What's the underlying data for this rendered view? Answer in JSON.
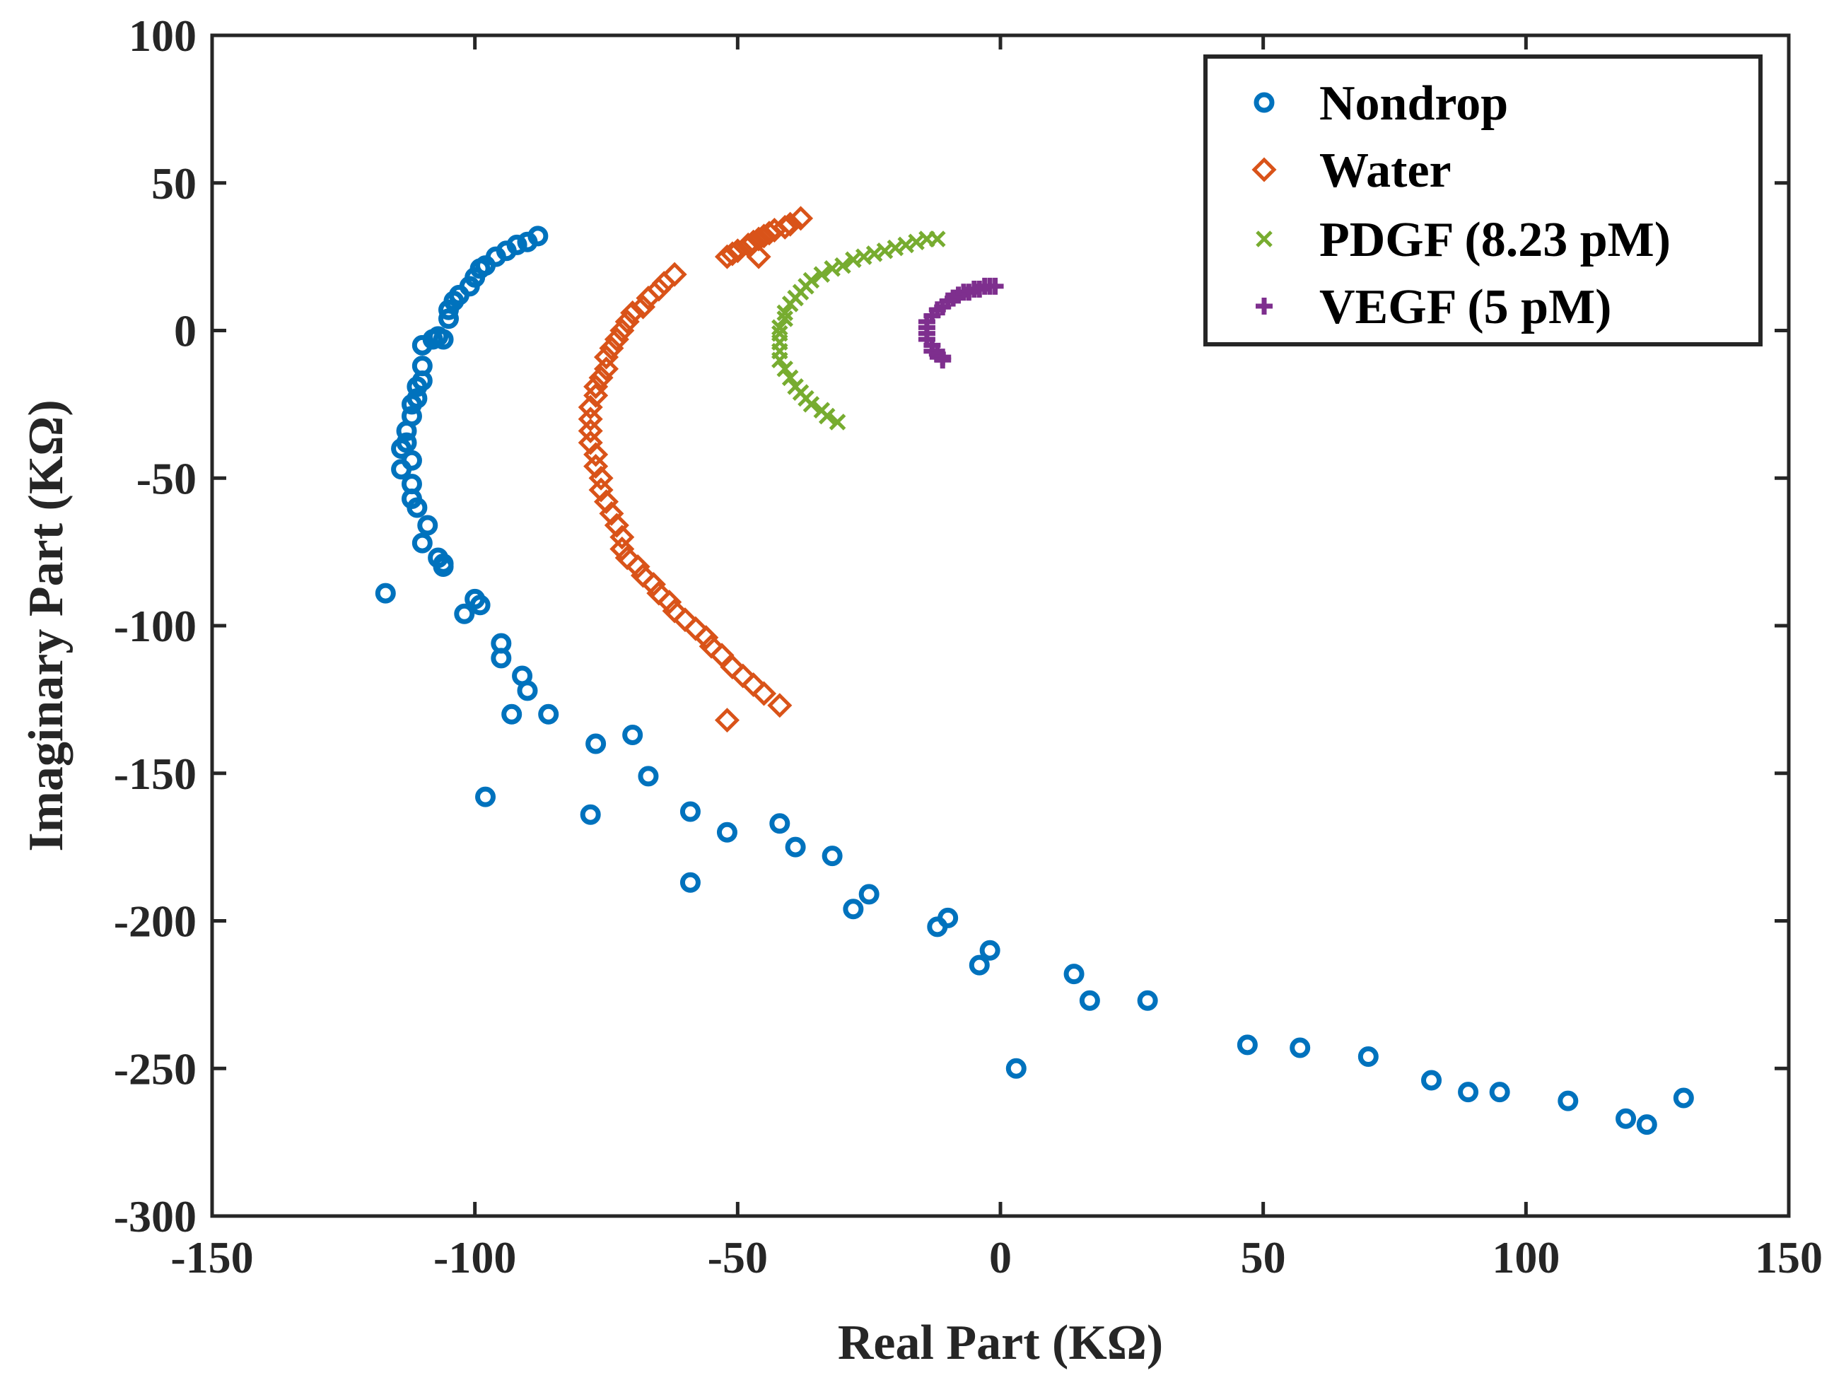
{
  "chart_data": {
    "type": "scatter",
    "title": "",
    "xlabel": "Real Part (KΩ)",
    "ylabel": "Imaginary Part (KΩ)",
    "xlim": [
      -150,
      150
    ],
    "ylim": [
      -300,
      100
    ],
    "xticks": [
      -150,
      -100,
      -50,
      0,
      50,
      100,
      150
    ],
    "yticks": [
      -300,
      -250,
      -200,
      -150,
      -100,
      -50,
      0,
      50,
      100
    ],
    "xtick_labels": [
      "-150",
      "-100",
      "-50",
      "0",
      "50",
      "100",
      "150"
    ],
    "ytick_labels": [
      "-300",
      "-250",
      "-200",
      "-150",
      "-100",
      "-50",
      "0",
      "50",
      "100"
    ],
    "grid": false,
    "legend_position": "top-right",
    "series": [
      {
        "name": "Nondrop",
        "marker": "circle",
        "color": "#0072BD",
        "points": [
          [
            -88,
            32
          ],
          [
            -90,
            30
          ],
          [
            -92,
            29
          ],
          [
            -94,
            27
          ],
          [
            -96,
            25
          ],
          [
            -98,
            22
          ],
          [
            -99,
            21
          ],
          [
            -100,
            18
          ],
          [
            -101,
            15
          ],
          [
            -103,
            12
          ],
          [
            -104,
            10
          ],
          [
            -105,
            7
          ],
          [
            -105,
            4
          ],
          [
            -106,
            -3
          ],
          [
            -107,
            -2
          ],
          [
            -108,
            -3
          ],
          [
            -110,
            -5
          ],
          [
            -110,
            -12
          ],
          [
            -110,
            -17
          ],
          [
            -111,
            -19
          ],
          [
            -111,
            -23
          ],
          [
            -112,
            -25
          ],
          [
            -112,
            -29
          ],
          [
            -113,
            -34
          ],
          [
            -113,
            -38
          ],
          [
            -114,
            -40
          ],
          [
            -112,
            -44
          ],
          [
            -114,
            -47
          ],
          [
            -112,
            -52
          ],
          [
            -112,
            -57
          ],
          [
            -111,
            -60
          ],
          [
            -109,
            -66
          ],
          [
            -110,
            -72
          ],
          [
            -107,
            -77
          ],
          [
            -106,
            -79
          ],
          [
            -106,
            -80
          ],
          [
            -117,
            -89
          ],
          [
            -100,
            -91
          ],
          [
            -102,
            -96
          ],
          [
            -99,
            -93
          ],
          [
            -95,
            -106
          ],
          [
            -95,
            -111
          ],
          [
            -91,
            -117
          ],
          [
            -90,
            -122
          ],
          [
            -93,
            -130
          ],
          [
            -86,
            -130
          ],
          [
            -77,
            -140
          ],
          [
            -70,
            -137
          ],
          [
            -67,
            -151
          ],
          [
            -98,
            -158
          ],
          [
            -78,
            -164
          ],
          [
            -59,
            -163
          ],
          [
            -52,
            -170
          ],
          [
            -42,
            -167
          ],
          [
            -39,
            -175
          ],
          [
            -59,
            -187
          ],
          [
            -32,
            -178
          ],
          [
            -28,
            -196
          ],
          [
            -25,
            -191
          ],
          [
            -12,
            -202
          ],
          [
            -10,
            -199
          ],
          [
            -4,
            -215
          ],
          [
            -2,
            -210
          ],
          [
            3,
            -250
          ],
          [
            14,
            -218
          ],
          [
            17,
            -227
          ],
          [
            28,
            -227
          ],
          [
            47,
            -242
          ],
          [
            57,
            -243
          ],
          [
            70,
            -246
          ],
          [
            82,
            -254
          ],
          [
            89,
            -258
          ],
          [
            95,
            -258
          ],
          [
            108,
            -261
          ],
          [
            119,
            -267
          ],
          [
            123,
            -269
          ],
          [
            130,
            -260
          ]
        ]
      },
      {
        "name": "Water",
        "marker": "diamond",
        "color": "#D95319",
        "points": [
          [
            -38,
            38
          ],
          [
            -40,
            36
          ],
          [
            -41,
            35
          ],
          [
            -43,
            34
          ],
          [
            -44,
            33
          ],
          [
            -45,
            32
          ],
          [
            -46,
            31
          ],
          [
            -47,
            30
          ],
          [
            -48,
            29
          ],
          [
            -50,
            27
          ],
          [
            -51,
            26
          ],
          [
            -52,
            25
          ],
          [
            -46,
            25
          ],
          [
            -62,
            19
          ],
          [
            -64,
            16
          ],
          [
            -65,
            14
          ],
          [
            -67,
            11
          ],
          [
            -68,
            8
          ],
          [
            -70,
            6
          ],
          [
            -71,
            3
          ],
          [
            -72,
            0
          ],
          [
            -73,
            -3
          ],
          [
            -74,
            -6
          ],
          [
            -75,
            -9
          ],
          [
            -75,
            -13
          ],
          [
            -76,
            -16
          ],
          [
            -77,
            -19
          ],
          [
            -77,
            -22
          ],
          [
            -78,
            -26
          ],
          [
            -78,
            -30
          ],
          [
            -78,
            -34
          ],
          [
            -78,
            -38
          ],
          [
            -77,
            -42
          ],
          [
            -77,
            -46
          ],
          [
            -76,
            -50
          ],
          [
            -76,
            -54
          ],
          [
            -75,
            -58
          ],
          [
            -74,
            -62
          ],
          [
            -73,
            -66
          ],
          [
            -72,
            -70
          ],
          [
            -72,
            -74
          ],
          [
            -71,
            -77
          ],
          [
            -69,
            -80
          ],
          [
            -68,
            -83
          ],
          [
            -66,
            -86
          ],
          [
            -65,
            -89
          ],
          [
            -63,
            -92
          ],
          [
            -62,
            -95
          ],
          [
            -60,
            -98
          ],
          [
            -58,
            -101
          ],
          [
            -56,
            -104
          ],
          [
            -55,
            -107
          ],
          [
            -53,
            -110
          ],
          [
            -51,
            -114
          ],
          [
            -49,
            -117
          ],
          [
            -47,
            -120
          ],
          [
            -45,
            -123
          ],
          [
            -42,
            -127
          ],
          [
            -52,
            -132
          ]
        ]
      },
      {
        "name": "PDGF (8.23 pM)",
        "marker": "x",
        "color": "#77AC30",
        "points": [
          [
            -12,
            31
          ],
          [
            -14,
            31
          ],
          [
            -16,
            30
          ],
          [
            -18,
            29
          ],
          [
            -20,
            28
          ],
          [
            -22,
            27
          ],
          [
            -24,
            26
          ],
          [
            -26,
            25
          ],
          [
            -28,
            24
          ],
          [
            -30,
            22
          ],
          [
            -32,
            21
          ],
          [
            -34,
            19
          ],
          [
            -36,
            17
          ],
          [
            -37,
            15
          ],
          [
            -38,
            13
          ],
          [
            -39,
            11
          ],
          [
            -40,
            9
          ],
          [
            -41,
            6
          ],
          [
            -41,
            4
          ],
          [
            -42,
            1
          ],
          [
            -42,
            -1
          ],
          [
            -42,
            -4
          ],
          [
            -42,
            -7
          ],
          [
            -42,
            -10
          ],
          [
            -41,
            -13
          ],
          [
            -40,
            -16
          ],
          [
            -39,
            -19
          ],
          [
            -38,
            -21
          ],
          [
            -37,
            -23
          ],
          [
            -36,
            -25
          ],
          [
            -34,
            -27
          ],
          [
            -33,
            -29
          ],
          [
            -31,
            -31
          ]
        ]
      },
      {
        "name": "VEGF (5 pM)",
        "marker": "plus",
        "color": "#7E2F8E",
        "points": [
          [
            -1,
            15
          ],
          [
            -2,
            15
          ],
          [
            -3,
            15
          ],
          [
            -4,
            14
          ],
          [
            -5,
            14
          ],
          [
            -6,
            13
          ],
          [
            -7,
            13
          ],
          [
            -8,
            12
          ],
          [
            -9,
            11
          ],
          [
            -10,
            10
          ],
          [
            -11,
            8
          ],
          [
            -12,
            7
          ],
          [
            -13,
            5
          ],
          [
            -14,
            3
          ],
          [
            -14,
            1
          ],
          [
            -14,
            -1
          ],
          [
            -14,
            -3
          ],
          [
            -13,
            -5
          ],
          [
            -13,
            -7
          ],
          [
            -12,
            -8
          ],
          [
            -11,
            -9
          ],
          [
            -11,
            -10
          ]
        ]
      }
    ]
  }
}
